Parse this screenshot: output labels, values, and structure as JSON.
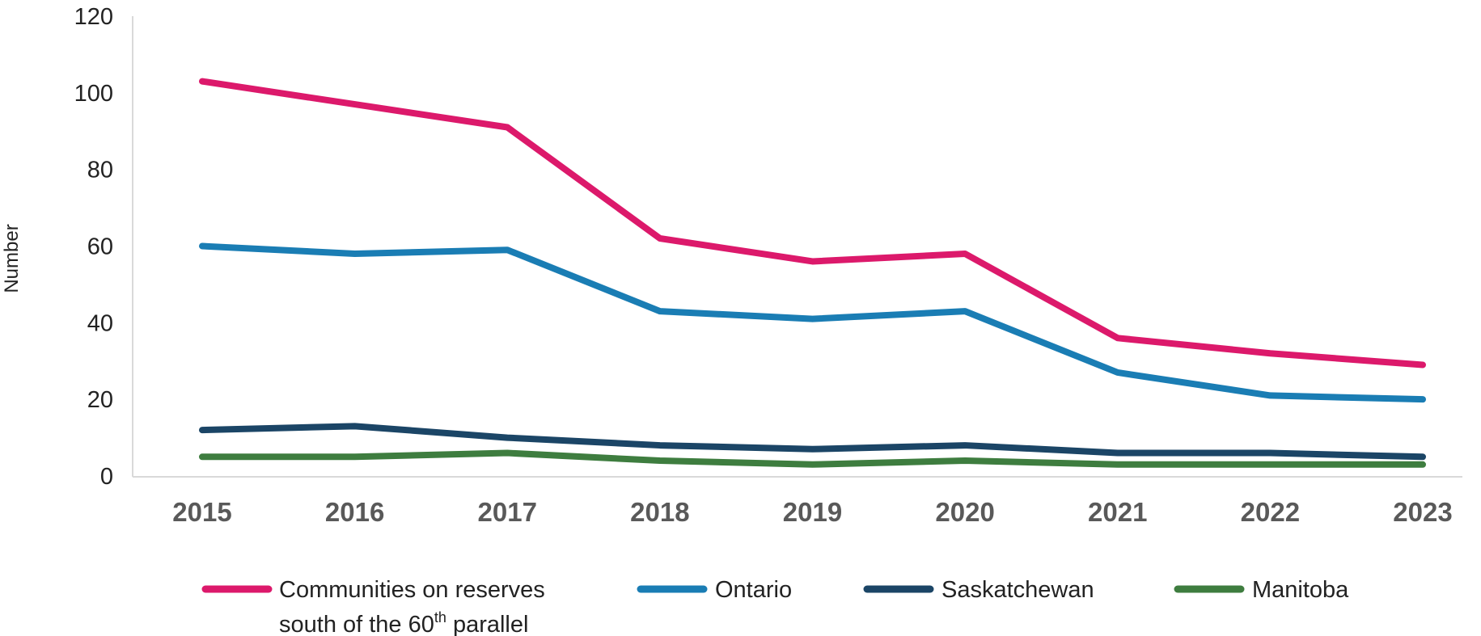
{
  "chart_data": {
    "type": "line",
    "title": "",
    "xlabel": "",
    "ylabel": "Number",
    "ylim": [
      0,
      120
    ],
    "yticks": [
      "0",
      "20",
      "40",
      "60",
      "80",
      "100",
      "120"
    ],
    "categories": [
      "2015",
      "2016",
      "2017",
      "2018",
      "2019",
      "2020",
      "2021",
      "2022",
      "2023"
    ],
    "grid": false,
    "legend_position": "bottom",
    "series": [
      {
        "name": "Communities on reserves south of the 60th parallel",
        "name_line1": "Communities on reserves",
        "name_line2_pre": "south of the 60",
        "name_line2_sup": "th",
        "name_line2_post": " parallel",
        "color": "#DC196B",
        "values": [
          103,
          97,
          91,
          62,
          56,
          58,
          36,
          32,
          29
        ]
      },
      {
        "name": "Ontario",
        "color": "#1A7DB4",
        "values": [
          60,
          58,
          59,
          43,
          41,
          43,
          27,
          21,
          20
        ]
      },
      {
        "name": "Saskatchewan",
        "color": "#1B4566",
        "values": [
          12,
          13,
          10,
          8,
          7,
          8,
          6,
          6,
          5
        ]
      },
      {
        "name": "Manitoba",
        "color": "#3E7D3F",
        "values": [
          5,
          5,
          6,
          4,
          3,
          4,
          3,
          3,
          3
        ]
      }
    ]
  }
}
